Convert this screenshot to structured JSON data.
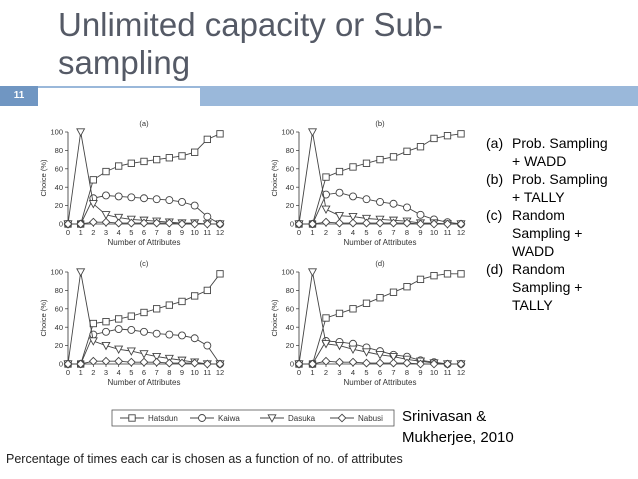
{
  "slide": {
    "title": "Unlimited capacity or Sub-sampling",
    "number": "11",
    "notes": [
      {
        "label": "(a)",
        "text": "Prob. Sampling + WADD"
      },
      {
        "label": "(b)",
        "text": "Prob. Sampling + TALLY"
      },
      {
        "label": "(c)",
        "text": "Random Sampling + WADD"
      },
      {
        "label": "(d)",
        "text": "Random Sampling + TALLY"
      }
    ],
    "credit": "Srinivasan & Mukherjee, 2010",
    "caption": "Percentage of times each car is chosen as a function of no. of attributes",
    "colors": {
      "bar": "#7096c2",
      "bar_light": "#9ab8da",
      "title": "#555a66"
    }
  },
  "chart_data": [
    {
      "type": "line",
      "panel": "(a)",
      "xlabel": "Number of Attributes",
      "ylabel": "Choice (%)",
      "x": [
        0,
        1,
        2,
        3,
        4,
        5,
        6,
        7,
        8,
        9,
        10,
        11,
        12
      ],
      "xlim": [
        0,
        12
      ],
      "ylim": [
        0,
        100
      ],
      "yticks": [
        0,
        20,
        40,
        60,
        80,
        100
      ],
      "legend": "bottom",
      "series": [
        {
          "name": "Hatsdun",
          "marker": "square",
          "values": [
            0,
            0,
            48,
            57,
            63,
            66,
            68,
            70,
            72,
            74,
            78,
            92,
            98
          ]
        },
        {
          "name": "Kaiwa",
          "marker": "circle",
          "values": [
            0,
            0,
            28,
            31,
            30,
            29,
            28,
            27,
            26,
            24,
            20,
            8,
            0
          ]
        },
        {
          "name": "Dasuka",
          "marker": "triangle-down",
          "values": [
            0,
            100,
            22,
            10,
            7,
            5,
            4,
            3,
            2,
            1,
            1,
            0,
            0
          ]
        },
        {
          "name": "Nabusi",
          "marker": "diamond",
          "values": [
            0,
            0,
            2,
            2,
            1,
            1,
            1,
            1,
            1,
            0,
            0,
            0,
            0
          ]
        }
      ]
    },
    {
      "type": "line",
      "panel": "(b)",
      "xlabel": "Number of Attributes",
      "ylabel": "Choice (%)",
      "x": [
        0,
        1,
        2,
        3,
        4,
        5,
        6,
        7,
        8,
        9,
        10,
        11,
        12
      ],
      "xlim": [
        0,
        12
      ],
      "ylim": [
        0,
        100
      ],
      "yticks": [
        0,
        20,
        40,
        60,
        80,
        100
      ],
      "legend": "bottom",
      "series": [
        {
          "name": "Hatsdun",
          "marker": "square",
          "values": [
            0,
            0,
            51,
            57,
            62,
            66,
            70,
            73,
            79,
            84,
            93,
            96,
            98
          ]
        },
        {
          "name": "Kaiwa",
          "marker": "circle",
          "values": [
            0,
            0,
            32,
            34,
            30,
            27,
            24,
            22,
            18,
            10,
            5,
            2,
            0
          ]
        },
        {
          "name": "Dasuka",
          "marker": "triangle-down",
          "values": [
            0,
            100,
            16,
            9,
            8,
            6,
            5,
            4,
            3,
            1,
            1,
            0,
            0
          ]
        },
        {
          "name": "Nabusi",
          "marker": "diamond",
          "values": [
            0,
            0,
            2,
            1,
            1,
            1,
            1,
            1,
            1,
            0,
            0,
            0,
            0
          ]
        }
      ]
    },
    {
      "type": "line",
      "panel": "(c)",
      "xlabel": "Number of Attributes",
      "ylabel": "Choice (%)",
      "x": [
        0,
        1,
        2,
        3,
        4,
        5,
        6,
        7,
        8,
        9,
        10,
        11,
        12
      ],
      "xlim": [
        0,
        12
      ],
      "ylim": [
        0,
        100
      ],
      "yticks": [
        0,
        20,
        40,
        60,
        80,
        100
      ],
      "legend": "bottom",
      "series": [
        {
          "name": "Hatsdun",
          "marker": "square",
          "values": [
            0,
            0,
            44,
            46,
            49,
            52,
            56,
            60,
            64,
            68,
            74,
            80,
            98
          ]
        },
        {
          "name": "Kaiwa",
          "marker": "circle",
          "values": [
            0,
            0,
            32,
            35,
            38,
            37,
            35,
            33,
            32,
            31,
            28,
            20,
            0
          ]
        },
        {
          "name": "Dasuka",
          "marker": "triangle-down",
          "values": [
            0,
            100,
            25,
            20,
            16,
            14,
            11,
            8,
            6,
            4,
            2,
            0,
            0
          ]
        },
        {
          "name": "Nabusi",
          "marker": "diamond",
          "values": [
            0,
            0,
            3,
            3,
            3,
            2,
            2,
            2,
            1,
            1,
            1,
            0,
            0
          ]
        }
      ]
    },
    {
      "type": "line",
      "panel": "(d)",
      "xlabel": "Number of Attributes",
      "ylabel": "Choice (%)",
      "x": [
        0,
        1,
        2,
        3,
        4,
        5,
        6,
        7,
        8,
        9,
        10,
        11,
        12
      ],
      "xlim": [
        0,
        12
      ],
      "ylim": [
        0,
        100
      ],
      "yticks": [
        0,
        20,
        40,
        60,
        80,
        100
      ],
      "legend": "bottom",
      "series": [
        {
          "name": "Hatsdun",
          "marker": "square",
          "values": [
            0,
            0,
            50,
            55,
            60,
            66,
            72,
            78,
            84,
            92,
            96,
            98,
            98
          ]
        },
        {
          "name": "Kaiwa",
          "marker": "circle",
          "values": [
            0,
            0,
            25,
            24,
            22,
            18,
            14,
            10,
            8,
            4,
            2,
            0,
            0
          ]
        },
        {
          "name": "Dasuka",
          "marker": "triangle-down",
          "values": [
            0,
            100,
            22,
            20,
            16,
            13,
            10,
            8,
            5,
            3,
            1,
            0,
            0
          ]
        },
        {
          "name": "Nabusi",
          "marker": "diamond",
          "values": [
            0,
            0,
            3,
            2,
            2,
            1,
            1,
            1,
            1,
            0,
            0,
            0,
            0
          ]
        }
      ]
    }
  ]
}
